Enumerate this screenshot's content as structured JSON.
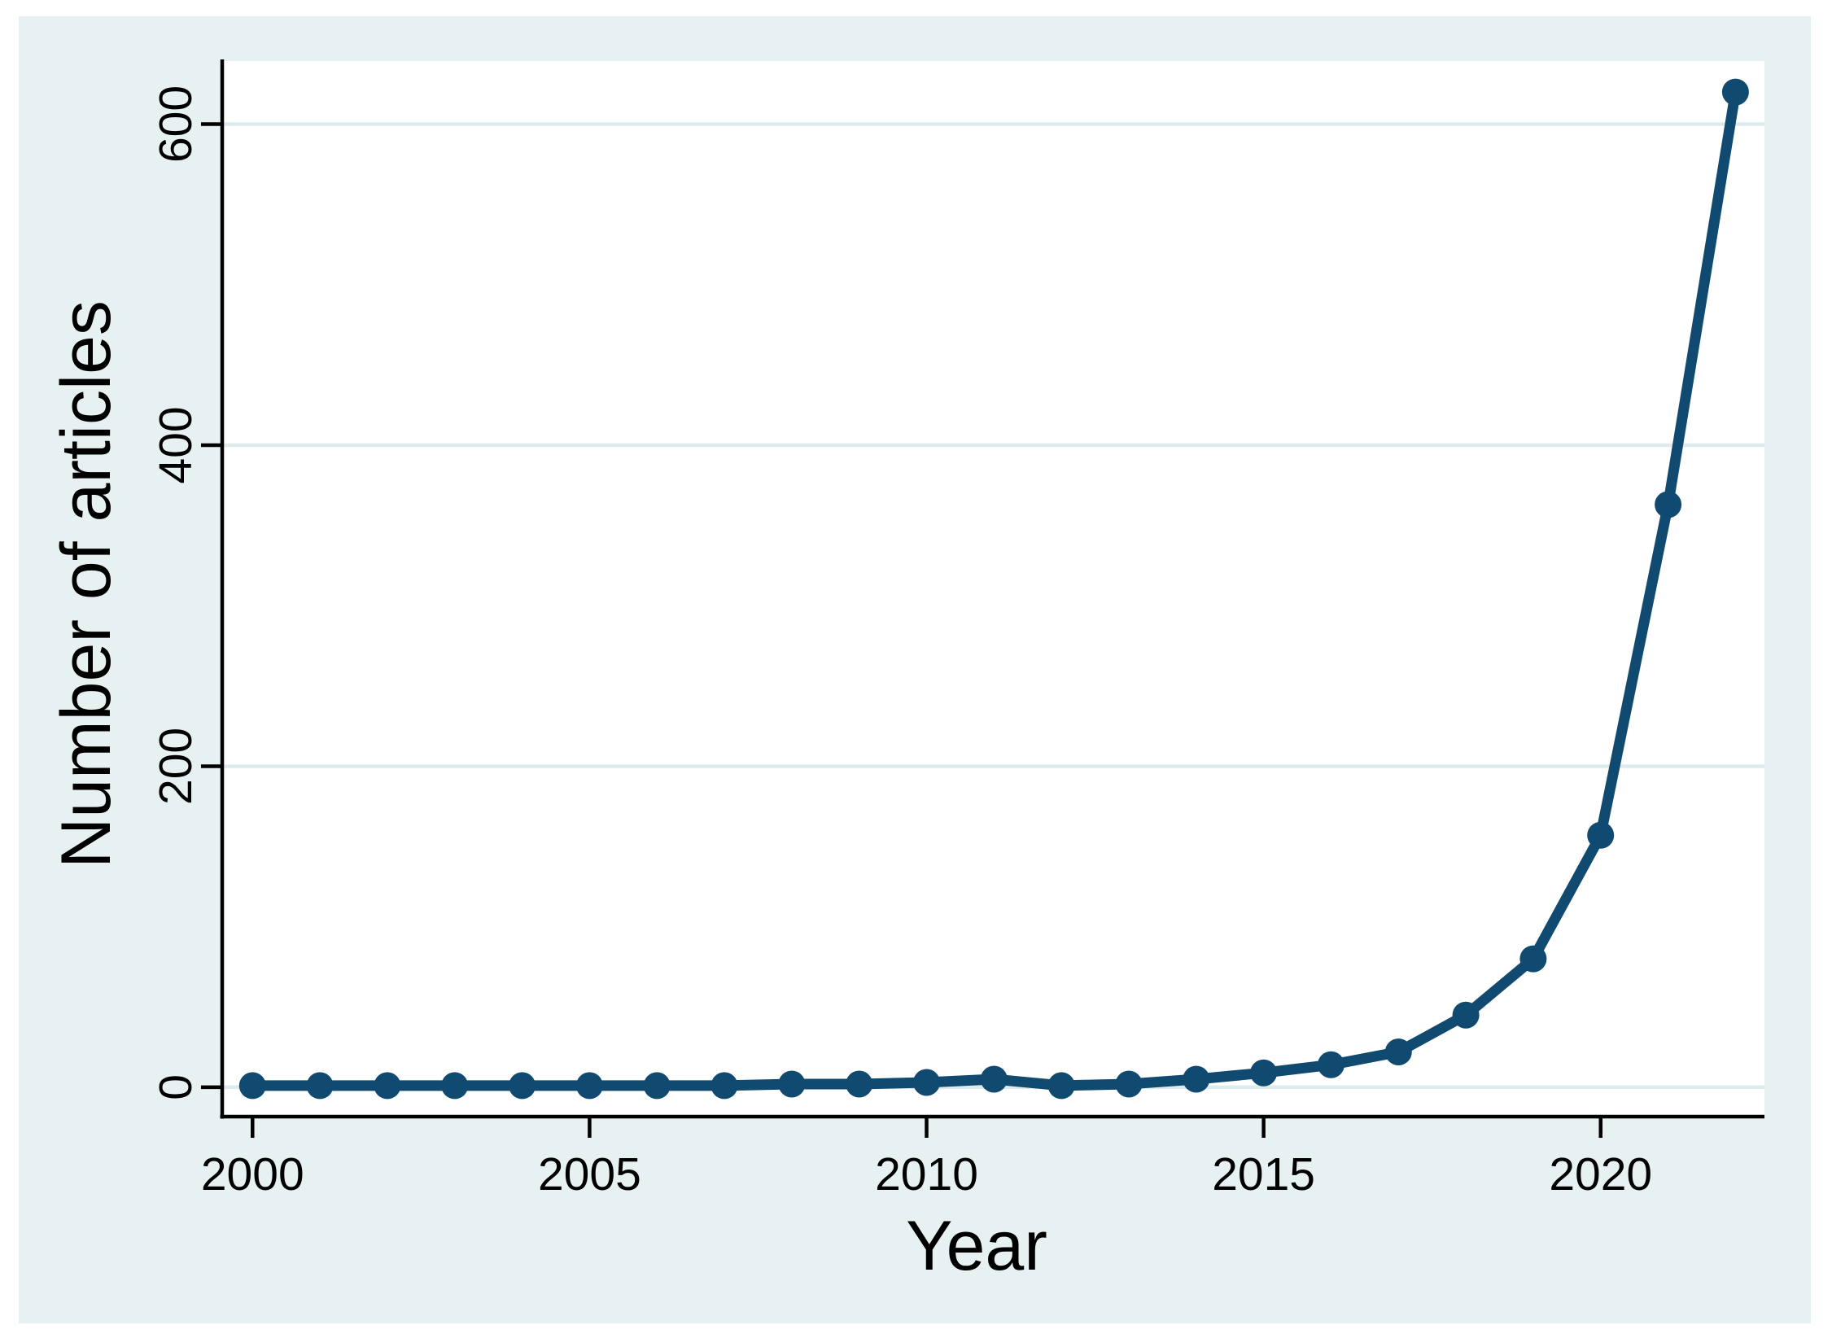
{
  "chart_data": {
    "type": "line",
    "title": "",
    "xlabel": "Year",
    "ylabel": "Number of articles",
    "legend": "none",
    "grid": "horizontal",
    "x": [
      2000,
      2001,
      2002,
      2003,
      2004,
      2005,
      2006,
      2007,
      2008,
      2009,
      2010,
      2011,
      2012,
      2013,
      2014,
      2015,
      2016,
      2017,
      2018,
      2019,
      2020,
      2021,
      2022
    ],
    "series": [
      {
        "name": "Number of articles",
        "values": [
          1,
          1,
          1,
          1,
          1,
          1,
          1,
          1,
          2,
          2,
          3,
          5,
          1,
          2,
          5,
          9,
          14,
          22,
          45,
          80,
          157,
          363,
          620
        ]
      }
    ],
    "xticks": [
      2000,
      2005,
      2010,
      2015,
      2020
    ],
    "xtick_labels": [
      "2000",
      "2005",
      "2010",
      "2015",
      "2020"
    ],
    "yticks": [
      0,
      200,
      400,
      600
    ],
    "ytick_labels": [
      "0",
      "200",
      "400",
      "600"
    ],
    "xlim": [
      1999.55,
      2022.43
    ],
    "ylim": [
      -18.3,
      639.3
    ],
    "marker": "circle"
  },
  "colors": {
    "line": "#114a70",
    "marker": "#114a70",
    "canvas_background": "#e7f1f2",
    "plot_background": "#ffffff",
    "grid": "#ddebed",
    "axis": "#000000"
  }
}
